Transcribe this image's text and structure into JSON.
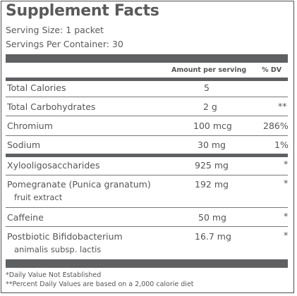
{
  "title": "Supplement Facts",
  "serving_size": "Serving Size: 1 packet",
  "servings_per_container": "Servings Per Container: 30",
  "columns": {
    "amount": "Amount per serving",
    "dv": "% DV"
  },
  "rows": [
    {
      "name": "Total Calories",
      "amount": "5",
      "dv": ""
    },
    {
      "name": "Total Carbohydrates",
      "amount": "2 g",
      "dv": "**"
    },
    {
      "name": "Chromium",
      "amount": "100 mcg",
      "dv": "286%"
    },
    {
      "name": "Sodium",
      "amount": "30 mg",
      "dv": "1%"
    },
    {
      "name": "Xylooligosaccharides",
      "amount": "925 mg",
      "dv": "*"
    },
    {
      "name": "Pomegranate (Punica granatum)",
      "name2": "fruit extract",
      "amount": "192 mg",
      "dv": "*"
    },
    {
      "name": "Caffeine",
      "amount": "50 mg",
      "dv": "*"
    },
    {
      "name": "Postbiotic Bifidobacterium",
      "name2": "animalis subsp. lactis",
      "amount": "16.7 mg",
      "dv": "*"
    }
  ],
  "footnotes": {
    "daily_value": "*Daily Value Not Established",
    "percent": "**Percent Daily Values are based on a 2,000 calorie diet"
  },
  "colors": {
    "bar": "#5f6062",
    "text": "#555555"
  }
}
